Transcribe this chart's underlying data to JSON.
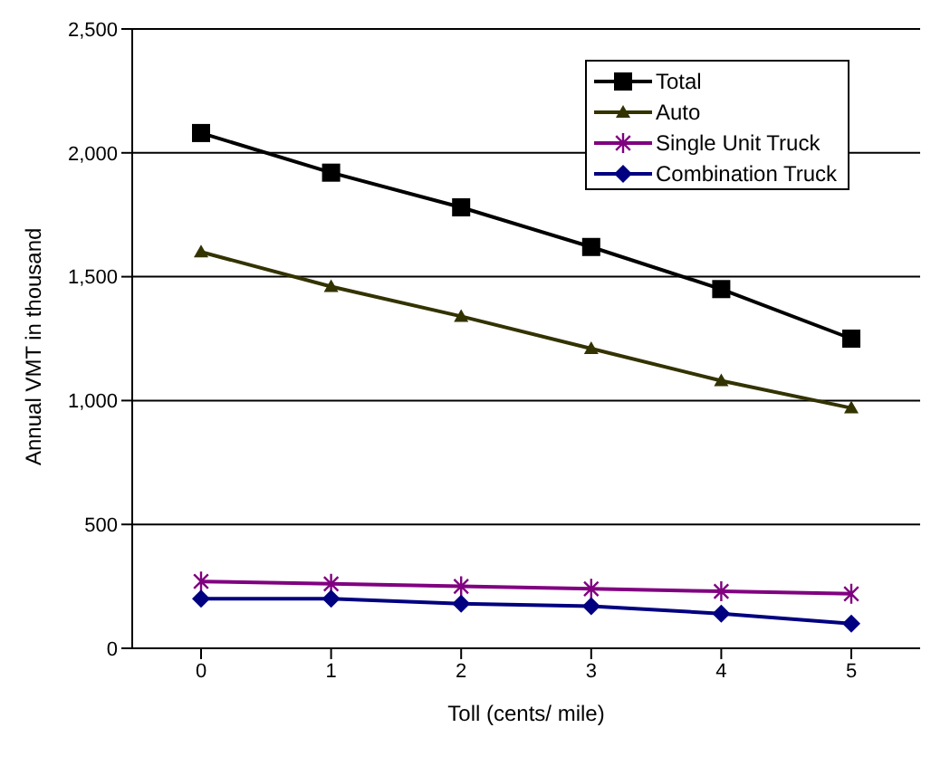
{
  "chart_data": {
    "type": "line",
    "xlabel": "Toll (cents/ mile)",
    "ylabel": "Annual VMT in thousand",
    "categories": [
      "0",
      "1",
      "2",
      "3",
      "4",
      "5"
    ],
    "series": [
      {
        "name": "Total",
        "color": "#000000",
        "marker": "square",
        "values": [
          2080,
          1920,
          1780,
          1620,
          1450,
          1250
        ]
      },
      {
        "name": "Auto",
        "color": "#333300",
        "marker": "triangle",
        "values": [
          1600,
          1460,
          1340,
          1210,
          1080,
          970
        ]
      },
      {
        "name": "Single Unit Truck",
        "color": "#800080",
        "marker": "cross",
        "values": [
          270,
          260,
          250,
          240,
          230,
          220
        ]
      },
      {
        "name": "Combination Truck",
        "color": "#000080",
        "marker": "diamond",
        "values": [
          200,
          200,
          180,
          170,
          140,
          100
        ]
      }
    ],
    "ylim": [
      0,
      2500
    ],
    "yticks": [
      {
        "value": 0,
        "label": "0"
      },
      {
        "value": 500,
        "label": "500"
      },
      {
        "value": 1000,
        "label": "1,000"
      },
      {
        "value": 1500,
        "label": "1,500"
      },
      {
        "value": 2000,
        "label": "2,000"
      },
      {
        "value": 2500,
        "label": "2,500"
      }
    ],
    "grid": "y",
    "legend": "top right"
  }
}
